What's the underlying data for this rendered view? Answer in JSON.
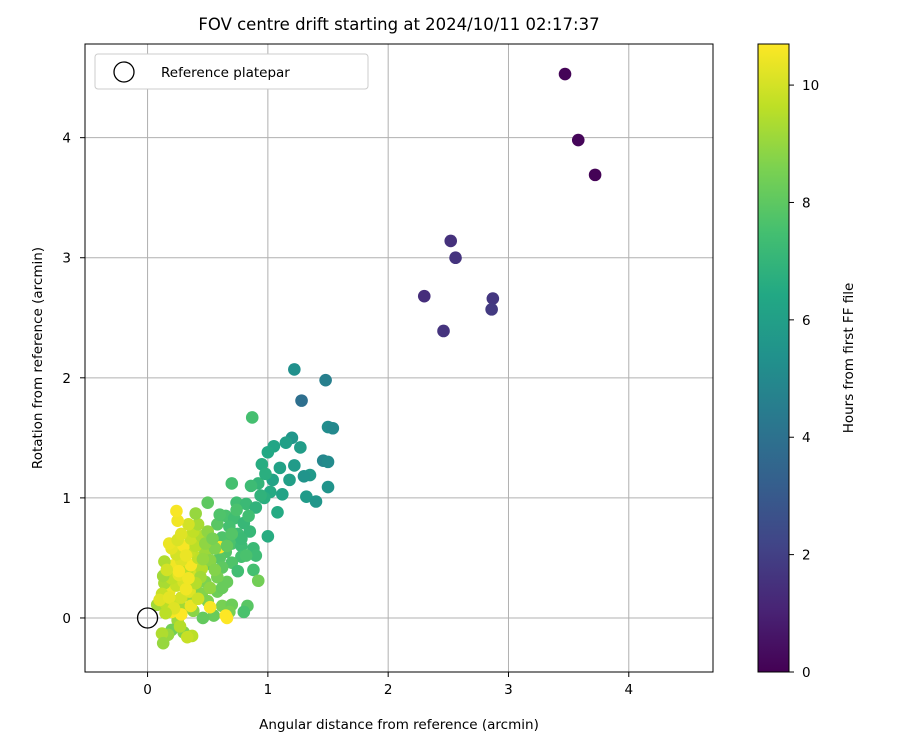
{
  "chart_data": {
    "type": "scatter",
    "title": "FOV centre drift starting at 2024/10/11 02:17:37",
    "xlabel": "Angular distance from reference (arcmin)",
    "ylabel": "Rotation from reference (arcmin)",
    "xlim": [
      -0.52,
      4.7
    ],
    "ylim": [
      -0.45,
      4.78
    ],
    "xticks": [
      "0",
      "1",
      "2",
      "3",
      "4"
    ],
    "yticks": [
      "0",
      "1",
      "2",
      "3",
      "4"
    ],
    "grid": true,
    "colormap": "viridis",
    "colorbar": {
      "label": "Hours from first FF file",
      "range": [
        0,
        10.7
      ],
      "ticks": [
        "0",
        "2",
        "4",
        "6",
        "8",
        "10"
      ]
    },
    "legend": {
      "position": "top-left",
      "entries": [
        {
          "label": "Reference platepar",
          "marker": "open-circle"
        }
      ]
    },
    "reference_point": {
      "x": 0,
      "y": 0
    },
    "series": [
      {
        "points": [
          [
            3.47,
            4.53,
            0.1
          ],
          [
            3.58,
            3.98,
            0.15
          ],
          [
            3.72,
            3.69,
            0.05
          ],
          [
            2.52,
            3.14,
            1.5
          ],
          [
            2.56,
            3.0,
            1.6
          ],
          [
            2.3,
            2.68,
            1.4
          ],
          [
            2.87,
            2.66,
            1.7
          ],
          [
            2.86,
            2.57,
            1.8
          ],
          [
            2.46,
            2.39,
            1.6
          ],
          [
            1.22,
            2.07,
            5.3
          ],
          [
            1.48,
            1.98,
            4.6
          ],
          [
            1.28,
            1.81,
            3.9
          ],
          [
            0.87,
            1.67,
            7.5
          ],
          [
            1.5,
            1.59,
            5.2
          ],
          [
            1.54,
            1.58,
            5.0
          ],
          [
            1.2,
            1.5,
            5.6
          ],
          [
            1.15,
            1.46,
            6.0
          ],
          [
            1.27,
            1.42,
            5.9
          ],
          [
            1.05,
            1.43,
            6.3
          ],
          [
            1.0,
            1.38,
            6.4
          ],
          [
            1.46,
            1.31,
            4.9
          ],
          [
            1.5,
            1.3,
            5.1
          ],
          [
            0.95,
            1.28,
            6.6
          ],
          [
            1.22,
            1.27,
            5.8
          ],
          [
            1.1,
            1.25,
            6.1
          ],
          [
            1.35,
            1.19,
            5.7
          ],
          [
            1.3,
            1.18,
            5.5
          ],
          [
            1.18,
            1.15,
            6.0
          ],
          [
            0.92,
            1.12,
            7.0
          ],
          [
            0.86,
            1.1,
            7.3
          ],
          [
            0.7,
            1.12,
            7.5
          ],
          [
            1.5,
            1.09,
            5.5
          ],
          [
            1.02,
            1.05,
            6.5
          ],
          [
            1.12,
            1.03,
            6.2
          ],
          [
            1.32,
            1.01,
            5.8
          ],
          [
            0.97,
            1.0,
            6.7
          ],
          [
            1.4,
            0.97,
            5.6
          ],
          [
            0.74,
            0.96,
            7.4
          ],
          [
            0.82,
            0.95,
            7.2
          ],
          [
            0.5,
            0.96,
            8.0
          ],
          [
            0.9,
            0.92,
            6.9
          ],
          [
            1.08,
            0.88,
            6.5
          ],
          [
            0.65,
            0.85,
            7.6
          ],
          [
            0.72,
            0.83,
            7.4
          ],
          [
            0.58,
            0.78,
            7.9
          ],
          [
            0.8,
            0.79,
            7.1
          ],
          [
            0.68,
            0.76,
            7.5
          ],
          [
            0.75,
            0.7,
            7.3
          ],
          [
            0.85,
            0.72,
            7.1
          ],
          [
            1.0,
            0.68,
            6.6
          ],
          [
            0.62,
            0.67,
            7.7
          ],
          [
            0.7,
            0.62,
            7.6
          ],
          [
            0.78,
            0.6,
            7.3
          ],
          [
            0.88,
            0.58,
            7.2
          ],
          [
            0.55,
            0.58,
            8.0
          ],
          [
            0.65,
            0.55,
            7.8
          ],
          [
            0.9,
            0.52,
            7.3
          ],
          [
            0.78,
            0.51,
            7.5
          ],
          [
            0.6,
            0.5,
            7.9
          ],
          [
            0.7,
            0.46,
            7.7
          ],
          [
            0.52,
            0.45,
            8.2
          ],
          [
            0.62,
            0.42,
            8.0
          ],
          [
            0.75,
            0.39,
            7.4
          ],
          [
            0.88,
            0.4,
            7.5
          ],
          [
            0.92,
            0.31,
            8.4
          ],
          [
            0.66,
            0.3,
            8.2
          ],
          [
            0.48,
            0.3,
            8.6
          ],
          [
            0.4,
            0.25,
            8.8
          ],
          [
            0.58,
            0.22,
            8.3
          ],
          [
            0.45,
            0.2,
            8.7
          ],
          [
            0.35,
            0.18,
            9.0
          ],
          [
            0.5,
            0.14,
            8.6
          ],
          [
            0.62,
            0.1,
            8.5
          ],
          [
            0.7,
            0.11,
            8.3
          ],
          [
            0.83,
            0.1,
            7.9
          ],
          [
            0.8,
            0.05,
            7.6
          ],
          [
            0.68,
            0.05,
            8.5
          ],
          [
            0.55,
            0.02,
            8.2
          ],
          [
            0.46,
            0.0,
            8.1
          ],
          [
            0.38,
            0.06,
            8.8
          ],
          [
            0.3,
            0.08,
            9.2
          ],
          [
            0.25,
            -0.02,
            9.1
          ],
          [
            0.2,
            -0.1,
            8.4
          ],
          [
            0.3,
            -0.12,
            8.7
          ],
          [
            0.17,
            -0.14,
            9.0
          ],
          [
            0.12,
            -0.13,
            9.4
          ],
          [
            0.13,
            -0.21,
            9.0
          ],
          [
            0.27,
            -0.07,
            9.5
          ],
          [
            0.37,
            -0.15,
            9.6
          ],
          [
            0.33,
            -0.16,
            9.8
          ],
          [
            0.08,
            0.11,
            9.2
          ],
          [
            0.15,
            0.12,
            9.6
          ],
          [
            0.22,
            0.14,
            9.9
          ],
          [
            0.28,
            0.17,
            10.0
          ],
          [
            0.35,
            0.22,
            10.2
          ],
          [
            0.18,
            0.22,
            10.4
          ],
          [
            0.24,
            0.27,
            9.8
          ],
          [
            0.14,
            0.29,
            9.3
          ],
          [
            0.3,
            0.3,
            10.1
          ],
          [
            0.2,
            0.33,
            9.7
          ],
          [
            0.13,
            0.35,
            9.2
          ],
          [
            0.26,
            0.36,
            10.3
          ],
          [
            0.38,
            0.38,
            10.0
          ],
          [
            0.33,
            0.4,
            9.6
          ],
          [
            0.45,
            0.41,
            9.5
          ],
          [
            0.22,
            0.44,
            10.5
          ],
          [
            0.36,
            0.44,
            10.6
          ],
          [
            0.14,
            0.47,
            9.4
          ],
          [
            0.28,
            0.48,
            10.2
          ],
          [
            0.42,
            0.5,
            9.7
          ],
          [
            0.24,
            0.53,
            10.0
          ],
          [
            0.35,
            0.55,
            9.8
          ],
          [
            0.48,
            0.55,
            9.1
          ],
          [
            0.2,
            0.58,
            10.3
          ],
          [
            0.3,
            0.6,
            10.6
          ],
          [
            0.4,
            0.6,
            9.6
          ],
          [
            0.6,
            0.59,
            10.7
          ],
          [
            0.18,
            0.62,
            10.4
          ],
          [
            0.25,
            0.65,
            10.1
          ],
          [
            0.36,
            0.66,
            9.9
          ],
          [
            0.45,
            0.68,
            9.4
          ],
          [
            0.28,
            0.7,
            10.2
          ],
          [
            0.38,
            0.72,
            9.7
          ],
          [
            0.5,
            0.72,
            8.9
          ],
          [
            0.42,
            0.78,
            9.3
          ],
          [
            0.34,
            0.78,
            10.0
          ],
          [
            0.4,
            0.87,
            9.0
          ],
          [
            0.25,
            0.81,
            10.5
          ],
          [
            0.24,
            0.89,
            10.6
          ],
          [
            0.56,
            0.58,
            8.6
          ],
          [
            0.52,
            0.48,
            8.8
          ],
          [
            0.44,
            0.34,
            9.2
          ],
          [
            0.4,
            0.29,
            9.5
          ],
          [
            0.52,
            0.25,
            8.9
          ],
          [
            0.58,
            0.34,
            8.5
          ],
          [
            0.48,
            0.62,
            8.9
          ],
          [
            0.54,
            0.66,
            8.5
          ],
          [
            0.66,
            0.6,
            8.1
          ],
          [
            0.56,
            0.4,
            8.7
          ],
          [
            0.46,
            0.49,
            9.0
          ],
          [
            0.32,
            0.52,
            10.4
          ],
          [
            0.26,
            0.39,
            10.6
          ],
          [
            0.16,
            0.4,
            10.0
          ],
          [
            0.12,
            0.2,
            9.8
          ],
          [
            0.1,
            0.15,
            10.2
          ],
          [
            0.2,
            0.05,
            10.6
          ],
          [
            0.28,
            0.03,
            10.7
          ],
          [
            0.36,
            0.1,
            10.4
          ],
          [
            0.52,
            0.09,
            10.6
          ],
          [
            0.65,
            0.02,
            10.7
          ],
          [
            0.66,
            0.0,
            10.7
          ],
          [
            0.32,
            0.24,
            10.5
          ],
          [
            0.18,
            0.17,
            10.3
          ],
          [
            0.42,
            0.16,
            9.9
          ],
          [
            0.34,
            0.33,
            10.5
          ],
          [
            0.22,
            0.08,
            10.2
          ],
          [
            0.15,
            0.04,
            9.6
          ],
          [
            0.62,
            0.25,
            8.2
          ],
          [
            0.78,
            0.66,
            7.2
          ],
          [
            0.82,
            0.52,
            7.6
          ],
          [
            0.7,
            0.7,
            7.8
          ],
          [
            0.6,
            0.86,
            7.7
          ],
          [
            0.74,
            0.9,
            7.6
          ],
          [
            0.84,
            0.85,
            7.4
          ],
          [
            0.94,
            1.02,
            6.9
          ],
          [
            1.04,
            1.15,
            6.2
          ],
          [
            0.98,
            1.2,
            6.7
          ]
        ]
      }
    ]
  }
}
